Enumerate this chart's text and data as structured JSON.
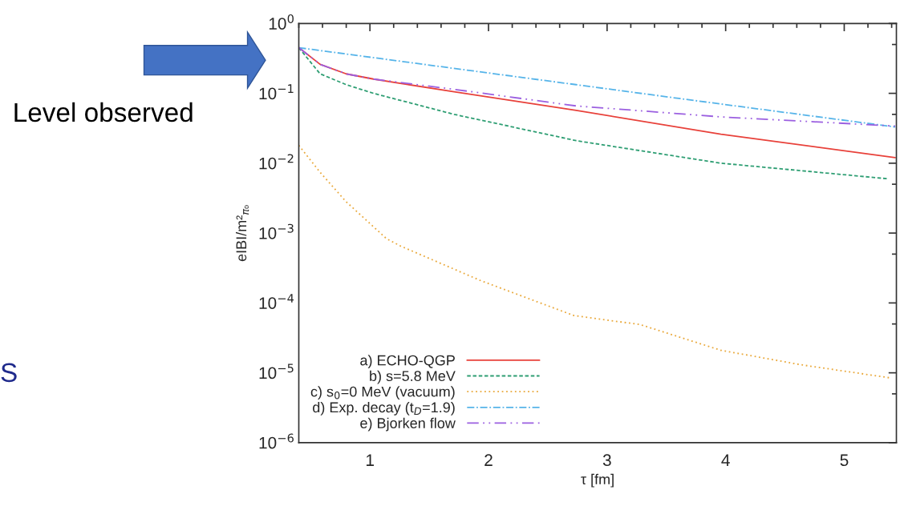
{
  "chart_data": {
    "type": "line",
    "xlabel": "τ [fm]",
    "ylabel": "eIBI/m²$_{π₀}$",
    "log": "y",
    "xlim": [
      0.4,
      5.44
    ],
    "xticks": [
      1,
      2,
      3,
      4,
      5
    ],
    "ylim": [
      1e-06,
      1
    ],
    "yticks": [
      {
        "value": 1e-06,
        "label": "10$^{−6}$"
      },
      {
        "value": 1e-05,
        "label": "10$^{−5}$"
      },
      {
        "value": 0.0001,
        "label": "10$^{−4}$"
      },
      {
        "value": 0.001,
        "label": "10$^{−3}$"
      },
      {
        "value": 0.01,
        "label": "10$^{−2}$"
      },
      {
        "value": 0.1,
        "label": "10$^{−1}$"
      },
      {
        "value": 1,
        "label": "10$^{0}$"
      }
    ],
    "grid": false,
    "legend": "bottom left",
    "marker": "none",
    "annotations": [
      "Level observed",
      "S"
    ],
    "series": [
      {
        "name": "a) ECHO-QGP",
        "color": "#e8413a",
        "line_style": "solid",
        "x": [
          0.4,
          0.58,
          0.8,
          1.03,
          1.71,
          2.74,
          3.96,
          5.43
        ],
        "values": [
          0.45,
          0.26,
          0.19,
          0.16,
          0.105,
          0.057,
          0.026,
          0.012
        ]
      },
      {
        "name": "b) s=5.8 MeV",
        "color": "#2e9e73",
        "line_style": "dashed",
        "x": [
          0.4,
          0.58,
          0.8,
          1.03,
          1.71,
          2.74,
          3.96,
          5.36
        ],
        "values": [
          0.45,
          0.19,
          0.133,
          0.1,
          0.05,
          0.021,
          0.01,
          0.006
        ]
      },
      {
        "name": "c) s$_{0}$=0 MeV (vacuum)",
        "color": "#e9a83a",
        "line_style": "dotted",
        "x": [
          0.4,
          0.58,
          0.8,
          1.14,
          1.26,
          1.93,
          2.72,
          3.28,
          3.96,
          4.64,
          5.38
        ],
        "values": [
          0.018,
          0.0074,
          0.0028,
          0.00083,
          0.00065,
          0.00021,
          6.6e-05,
          4.9e-05,
          2.1e-05,
          1.3e-05,
          8.5e-06
        ]
      },
      {
        "name": "d) Exp. decay (t$_{D}$=1.9)",
        "color": "#56b4e9",
        "line_style": "dashdot",
        "x": [
          0.4,
          2.74,
          3.76,
          5.43
        ],
        "values": [
          0.45,
          0.133,
          0.078,
          0.033
        ]
      },
      {
        "name": "e) Bjorken flow",
        "color": "#9b5fe0",
        "line_style": "dashdotdot",
        "x": [
          0.4,
          0.58,
          0.8,
          1.03,
          1.71,
          2.74,
          3.96,
          5.43
        ],
        "values": [
          0.45,
          0.26,
          0.19,
          0.16,
          0.114,
          0.066,
          0.046,
          0.034
        ]
      }
    ]
  }
}
